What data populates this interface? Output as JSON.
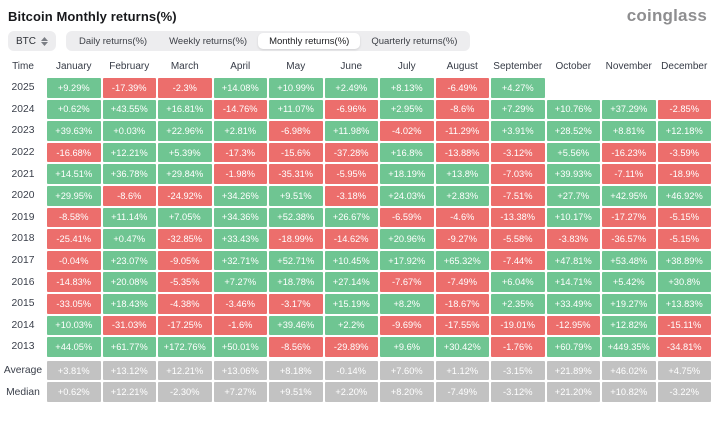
{
  "header": {
    "title": "Bitcoin Monthly returns(%)",
    "logo": "coinglass"
  },
  "controls": {
    "symbol": "BTC",
    "tabs": [
      {
        "label": "Daily returns(%)",
        "active": false
      },
      {
        "label": "Weekly returns(%)",
        "active": false
      },
      {
        "label": "Monthly returns(%)",
        "active": true
      },
      {
        "label": "Quarterly returns(%)",
        "active": false
      }
    ]
  },
  "colors": {
    "positive": "#6fc592",
    "negative": "#ec6e6c",
    "summary": "#c2c2c2"
  },
  "chart_data": {
    "type": "heatmap",
    "title": "Bitcoin Monthly returns(%)",
    "time_header": "Time",
    "months": [
      "January",
      "February",
      "March",
      "April",
      "May",
      "June",
      "July",
      "August",
      "September",
      "October",
      "November",
      "December"
    ],
    "rows": [
      {
        "label": "2025",
        "type": "year",
        "values": [
          "+9.29%",
          "-17.39%",
          "-2.3%",
          "+14.08%",
          "+10.99%",
          "+2.49%",
          "+8.13%",
          "-6.49%",
          "+4.27%",
          "",
          "",
          ""
        ]
      },
      {
        "label": "2024",
        "type": "year",
        "values": [
          "+0.62%",
          "+43.55%",
          "+16.81%",
          "-14.76%",
          "+11.07%",
          "-6.96%",
          "+2.95%",
          "-8.6%",
          "+7.29%",
          "+10.76%",
          "+37.29%",
          "-2.85%"
        ]
      },
      {
        "label": "2023",
        "type": "year",
        "values": [
          "+39.63%",
          "+0.03%",
          "+22.96%",
          "+2.81%",
          "-6.98%",
          "+11.98%",
          "-4.02%",
          "-11.29%",
          "+3.91%",
          "+28.52%",
          "+8.81%",
          "+12.18%"
        ]
      },
      {
        "label": "2022",
        "type": "year",
        "values": [
          "-16.68%",
          "+12.21%",
          "+5.39%",
          "-17.3%",
          "-15.6%",
          "-37.28%",
          "+16.8%",
          "-13.88%",
          "-3.12%",
          "+5.56%",
          "-16.23%",
          "-3.59%"
        ]
      },
      {
        "label": "2021",
        "type": "year",
        "values": [
          "+14.51%",
          "+36.78%",
          "+29.84%",
          "-1.98%",
          "-35.31%",
          "-5.95%",
          "+18.19%",
          "+13.8%",
          "-7.03%",
          "+39.93%",
          "-7.11%",
          "-18.9%"
        ]
      },
      {
        "label": "2020",
        "type": "year",
        "values": [
          "+29.95%",
          "-8.6%",
          "-24.92%",
          "+34.26%",
          "+9.51%",
          "-3.18%",
          "+24.03%",
          "+2.83%",
          "-7.51%",
          "+27.7%",
          "+42.95%",
          "+46.92%"
        ]
      },
      {
        "label": "2019",
        "type": "year",
        "values": [
          "-8.58%",
          "+11.14%",
          "+7.05%",
          "+34.36%",
          "+52.38%",
          "+26.67%",
          "-6.59%",
          "-4.6%",
          "-13.38%",
          "+10.17%",
          "-17.27%",
          "-5.15%"
        ]
      },
      {
        "label": "2018",
        "type": "year",
        "values": [
          "-25.41%",
          "+0.47%",
          "-32.85%",
          "+33.43%",
          "-18.99%",
          "-14.62%",
          "+20.96%",
          "-9.27%",
          "-5.58%",
          "-3.83%",
          "-36.57%",
          "-5.15%"
        ]
      },
      {
        "label": "2017",
        "type": "year",
        "values": [
          "-0.04%",
          "+23.07%",
          "-9.05%",
          "+32.71%",
          "+52.71%",
          "+10.45%",
          "+17.92%",
          "+65.32%",
          "-7.44%",
          "+47.81%",
          "+53.48%",
          "+38.89%"
        ]
      },
      {
        "label": "2016",
        "type": "year",
        "values": [
          "-14.83%",
          "+20.08%",
          "-5.35%",
          "+7.27%",
          "+18.78%",
          "+27.14%",
          "-7.67%",
          "-7.49%",
          "+6.04%",
          "+14.71%",
          "+5.42%",
          "+30.8%"
        ]
      },
      {
        "label": "2015",
        "type": "year",
        "values": [
          "-33.05%",
          "+18.43%",
          "-4.38%",
          "-3.46%",
          "-3.17%",
          "+15.19%",
          "+8.2%",
          "-18.67%",
          "+2.35%",
          "+33.49%",
          "+19.27%",
          "+13.83%"
        ]
      },
      {
        "label": "2014",
        "type": "year",
        "values": [
          "+10.03%",
          "-31.03%",
          "-17.25%",
          "-1.6%",
          "+39.46%",
          "+2.2%",
          "-9.69%",
          "-17.55%",
          "-19.01%",
          "-12.95%",
          "+12.82%",
          "-15.11%"
        ]
      },
      {
        "label": "2013",
        "type": "year",
        "values": [
          "+44.05%",
          "+61.77%",
          "+172.76%",
          "+50.01%",
          "-8.56%",
          "-29.89%",
          "+9.6%",
          "+30.42%",
          "-1.76%",
          "+60.79%",
          "+449.35%",
          "-34.81%"
        ]
      },
      {
        "label": "Average",
        "type": "summary",
        "values": [
          "+3.81%",
          "+13.12%",
          "+12.21%",
          "+13.06%",
          "+8.18%",
          "-0.14%",
          "+7.60%",
          "+1.12%",
          "-3.15%",
          "+21.89%",
          "+46.02%",
          "+4.75%"
        ]
      },
      {
        "label": "Median",
        "type": "summary",
        "values": [
          "+0.62%",
          "+12.21%",
          "-2.30%",
          "+7.27%",
          "+9.51%",
          "+2.20%",
          "+8.20%",
          "-7.49%",
          "-3.12%",
          "+21.20%",
          "+10.82%",
          "-3.22%"
        ]
      }
    ]
  }
}
